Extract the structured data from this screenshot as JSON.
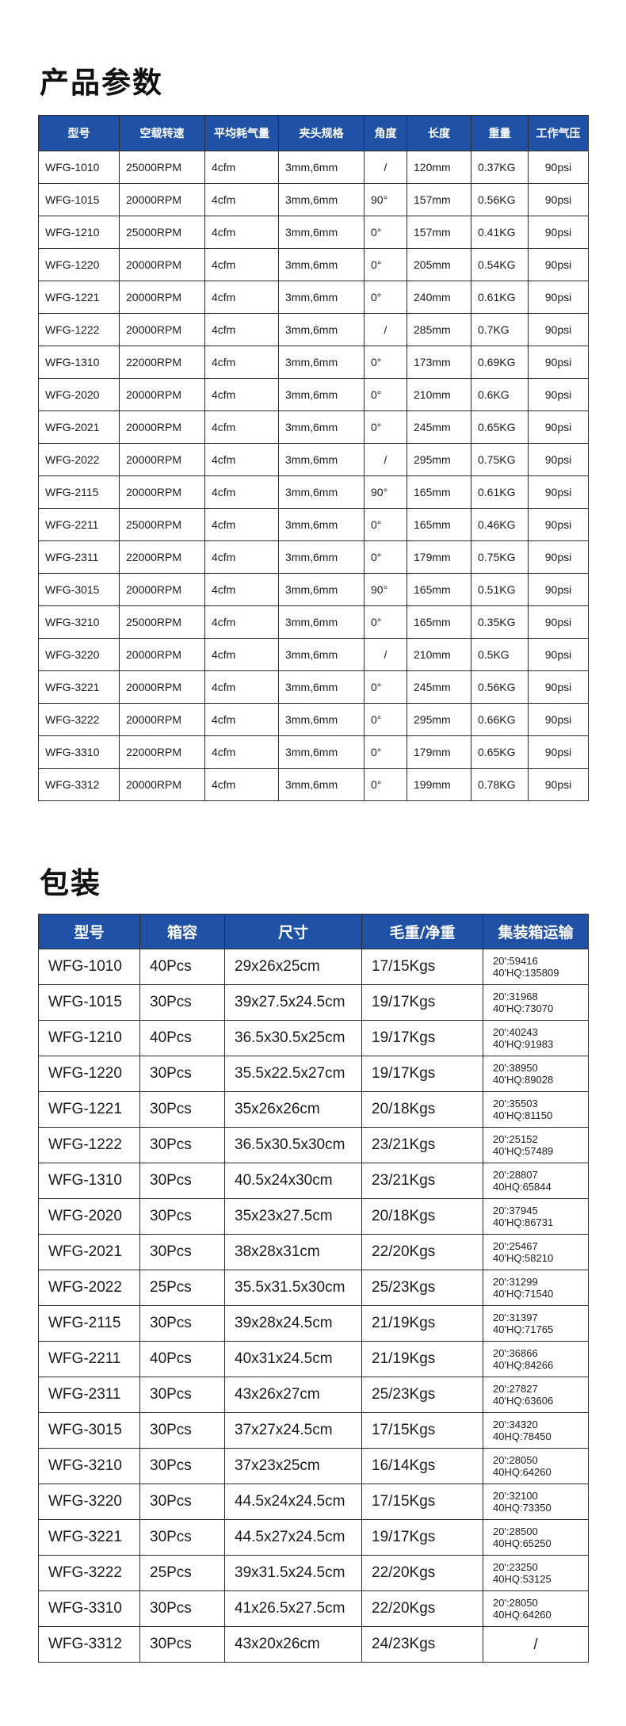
{
  "spec_section": {
    "title": "产品参数",
    "headers": [
      "型号",
      "空载转速",
      "平均耗气量",
      "夹头规格",
      "角度",
      "长度",
      "重量",
      "工作气压"
    ],
    "rows": [
      [
        "WFG-1010",
        "25000RPM",
        "4cfm",
        "3mm,6mm",
        "/",
        "120mm",
        "0.37KG",
        "90psi"
      ],
      [
        "WFG-1015",
        "20000RPM",
        "4cfm",
        "3mm,6mm",
        "90°",
        "157mm",
        "0.56KG",
        "90psi"
      ],
      [
        "WFG-1210",
        "25000RPM",
        "4cfm",
        "3mm,6mm",
        "0°",
        "157mm",
        "0.41KG",
        "90psi"
      ],
      [
        "WFG-1220",
        "20000RPM",
        "4cfm",
        "3mm,6mm",
        "0°",
        "205mm",
        "0.54KG",
        "90psi"
      ],
      [
        "WFG-1221",
        "20000RPM",
        "4cfm",
        "3mm,6mm",
        "0°",
        "240mm",
        "0.61KG",
        "90psi"
      ],
      [
        "WFG-1222",
        "20000RPM",
        "4cfm",
        "3mm,6mm",
        "/",
        "285mm",
        "0.7KG",
        "90psi"
      ],
      [
        "WFG-1310",
        "22000RPM",
        "4cfm",
        "3mm,6mm",
        "0°",
        "173mm",
        "0.69KG",
        "90psi"
      ],
      [
        "WFG-2020",
        "20000RPM",
        "4cfm",
        "3mm,6mm",
        "0°",
        "210mm",
        "0.6KG",
        "90psi"
      ],
      [
        "WFG-2021",
        "20000RPM",
        "4cfm",
        "3mm,6mm",
        "0°",
        "245mm",
        "0.65KG",
        "90psi"
      ],
      [
        "WFG-2022",
        "20000RPM",
        "4cfm",
        "3mm,6mm",
        "/",
        "295mm",
        "0.75KG",
        "90psi"
      ],
      [
        "WFG-2115",
        "20000RPM",
        "4cfm",
        "3mm,6mm",
        "90°",
        "165mm",
        "0.61KG",
        "90psi"
      ],
      [
        "WFG-2211",
        "25000RPM",
        "4cfm",
        "3mm,6mm",
        "0°",
        "165mm",
        "0.46KG",
        "90psi"
      ],
      [
        "WFG-2311",
        "22000RPM",
        "4cfm",
        "3mm,6mm",
        "0°",
        "179mm",
        "0.75KG",
        "90psi"
      ],
      [
        "WFG-3015",
        "20000RPM",
        "4cfm",
        "3mm,6mm",
        "90°",
        "165mm",
        "0.51KG",
        "90psi"
      ],
      [
        "WFG-3210",
        "25000RPM",
        "4cfm",
        "3mm,6mm",
        "0°",
        "165mm",
        "0.35KG",
        "90psi"
      ],
      [
        "WFG-3220",
        "20000RPM",
        "4cfm",
        "3mm,6mm",
        "/",
        "210mm",
        "0.5KG",
        "90psi"
      ],
      [
        "WFG-3221",
        "20000RPM",
        "4cfm",
        "3mm,6mm",
        "0°",
        "245mm",
        "0.56KG",
        "90psi"
      ],
      [
        "WFG-3222",
        "20000RPM",
        "4cfm",
        "3mm,6mm",
        "0°",
        "295mm",
        "0.66KG",
        "90psi"
      ],
      [
        "WFG-3310",
        "22000RPM",
        "4cfm",
        "3mm,6mm",
        "0°",
        "179mm",
        "0.65KG",
        "90psi"
      ],
      [
        "WFG-3312",
        "20000RPM",
        "4cfm",
        "3mm,6mm",
        "0°",
        "199mm",
        "0.78KG",
        "90psi"
      ]
    ]
  },
  "pack_section": {
    "title": "包装",
    "headers": [
      "型号",
      "箱容",
      "尺寸",
      "毛重/净重",
      "集装箱运输"
    ],
    "rows": [
      [
        "WFG-1010",
        "40Pcs",
        "29x26x25cm",
        "17/15Kgs",
        [
          "20':59416",
          "40'HQ:135809"
        ]
      ],
      [
        "WFG-1015",
        "30Pcs",
        "39x27.5x24.5cm",
        "19/17Kgs",
        [
          "20':31968",
          "40'HQ:73070"
        ]
      ],
      [
        "WFG-1210",
        "40Pcs",
        "36.5x30.5x25cm",
        "19/17Kgs",
        [
          "20':40243",
          "40'HQ:91983"
        ]
      ],
      [
        "WFG-1220",
        "30Pcs",
        "35.5x22.5x27cm",
        "19/17Kgs",
        [
          "20':38950",
          "40'HQ:89028"
        ]
      ],
      [
        "WFG-1221",
        "30Pcs",
        "35x26x26cm",
        "20/18Kgs",
        [
          "20':35503",
          "40'HQ:81150"
        ]
      ],
      [
        "WFG-1222",
        "30Pcs",
        "36.5x30.5x30cm",
        "23/21Kgs",
        [
          "20':25152",
          "40'HQ:57489"
        ]
      ],
      [
        "WFG-1310",
        "30Pcs",
        "40.5x24x30cm",
        "23/21Kgs",
        [
          "20':28807",
          "40HQ:65844"
        ]
      ],
      [
        "WFG-2020",
        "30Pcs",
        "35x23x27.5cm",
        "20/18Kgs",
        [
          "20':37945",
          "40'HQ:86731"
        ]
      ],
      [
        "WFG-2021",
        "30Pcs",
        "38x28x31cm",
        "22/20Kgs",
        [
          "20':25467",
          "40'HQ:58210"
        ]
      ],
      [
        "WFG-2022",
        "25Pcs",
        "35.5x31.5x30cm",
        "25/23Kgs",
        [
          "20':31299",
          "40'HQ:71540"
        ]
      ],
      [
        "WFG-2115",
        "30Pcs",
        "39x28x24.5cm",
        "21/19Kgs",
        [
          "20':31397",
          "40'HQ:71765"
        ]
      ],
      [
        "WFG-2211",
        "40Pcs",
        "40x31x24.5cm",
        "21/19Kgs",
        [
          "20':36866",
          "40'HQ:84266"
        ]
      ],
      [
        "WFG-2311",
        "30Pcs",
        "43x26x27cm",
        "25/23Kgs",
        [
          "20':27827",
          "40'HQ:63606"
        ]
      ],
      [
        "WFG-3015",
        "30Pcs",
        "37x27x24.5cm",
        "17/15Kgs",
        [
          "20':34320",
          "40HQ:78450"
        ]
      ],
      [
        "WFG-3210",
        "30Pcs",
        "37x23x25cm",
        "16/14Kgs",
        [
          "20':28050",
          "40HQ:64260"
        ]
      ],
      [
        "WFG-3220",
        "30Pcs",
        "44.5x24x24.5cm",
        "17/15Kgs",
        [
          "20':32100",
          "40HQ:73350"
        ]
      ],
      [
        "WFG-3221",
        "30Pcs",
        "44.5x27x24.5cm",
        "19/17Kgs",
        [
          "20':28500",
          "40HQ:65250"
        ]
      ],
      [
        "WFG-3222",
        "25Pcs",
        "39x31.5x24.5cm",
        "22/20Kgs",
        [
          "20':23250",
          "40HQ:53125"
        ]
      ],
      [
        "WFG-3310",
        "30Pcs",
        "41x26.5x27.5cm",
        "22/20Kgs",
        [
          "20':28050",
          "40HQ:64260"
        ]
      ],
      [
        "WFG-3312",
        "30Pcs",
        "43x20x26cm",
        "24/23Kgs",
        [
          "/"
        ]
      ]
    ]
  },
  "colors": {
    "header_bg": "#1f52a6",
    "header_text": "#ffffff",
    "border": "#2b2b2b"
  }
}
